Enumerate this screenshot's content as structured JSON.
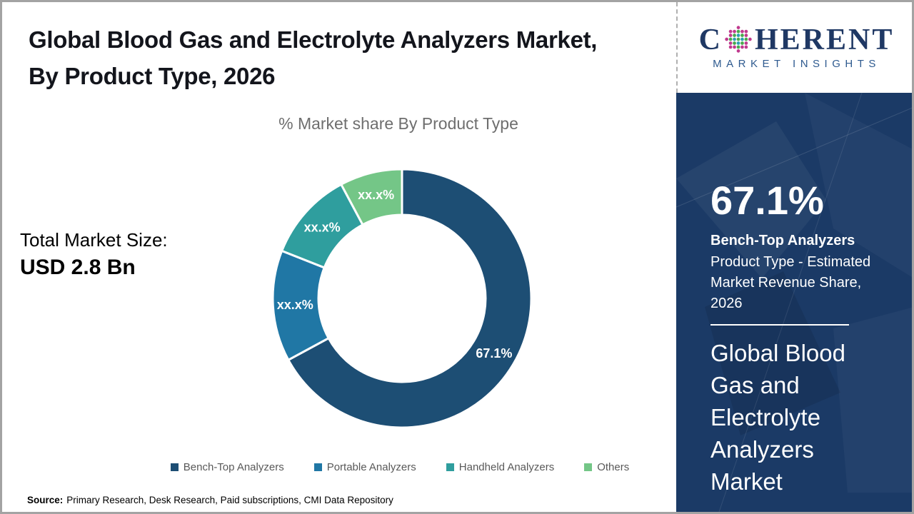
{
  "header": {
    "title": "Global Blood Gas and Electrolyte Analyzers Market, By Product Type, 2026"
  },
  "chart_data": {
    "type": "pie",
    "subtype": "donut",
    "title": "% Market share By Product Type",
    "categories": [
      "Bench-Top Analyzers",
      "Portable Analyzers",
      "Handheld Analyzers",
      "Others"
    ],
    "values": [
      67.1,
      13.9,
      11.2,
      7.8
    ],
    "labels": [
      "67.1%",
      "xx.x%",
      "xx.x%",
      "xx.x%"
    ],
    "colors": [
      "#1d4e74",
      "#2077a5",
      "#2f9e9e",
      "#74c687"
    ],
    "legend_position": "bottom",
    "hole_ratio": 0.65
  },
  "left_panel": {
    "total_label": "Total Market Size:",
    "total_value": "USD 2.8 Bn"
  },
  "sidebar": {
    "background": "#1b3a66",
    "stat_value": "67.1%",
    "stat_title": "Bench-Top Analyzers",
    "stat_desc": "Product Type - Estimated Market Revenue Share, 2026",
    "market_name": "Global Blood Gas and Electrolyte Analyzers Market"
  },
  "logo": {
    "brand_prefix": "C",
    "brand_suffix": "HERENT",
    "tagline": "MARKET INSIGHTS",
    "brand_color": "#1f3864",
    "tagline_color": "#2e5a8f",
    "globe_colors": [
      "#c0398e",
      "#2aa0b4",
      "#49a84c"
    ]
  },
  "source": {
    "label": "Source:",
    "text": "Primary Research, Desk Research, Paid subscriptions, CMI Data Repository"
  }
}
